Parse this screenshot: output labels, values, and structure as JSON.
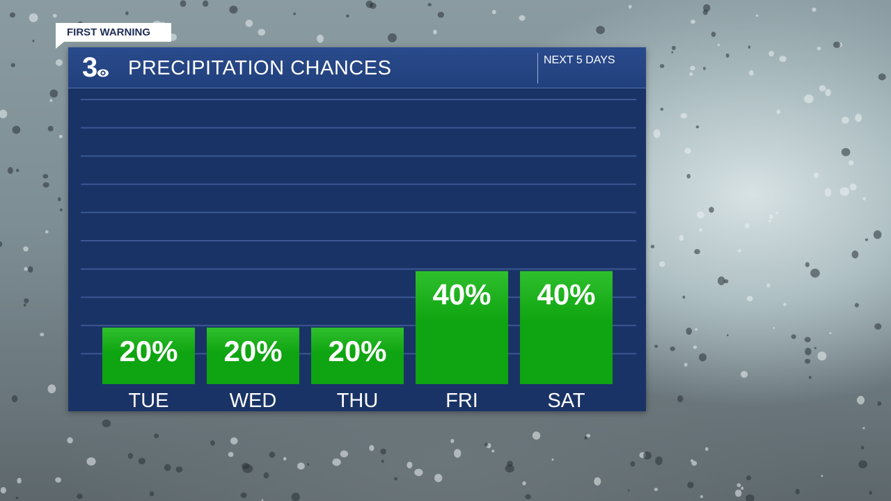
{
  "badge": {
    "label": "FIRST WARNING"
  },
  "header": {
    "title": "PRECIPITATION CHANCES",
    "period": "NEXT 5 DAYS",
    "logo_icon": "channel-3-cbs-eye-logo"
  },
  "colors": {
    "panel": "#1a3366",
    "header": "#2a4b8c",
    "bar": "#0fa411",
    "bar_light": "#2fbf2d",
    "gridline": "#3b5892",
    "text": "#ffffff"
  },
  "chart_data": {
    "type": "bar",
    "title": "PRECIPITATION CHANCES",
    "categories": [
      "TUE",
      "WED",
      "THU",
      "FRI",
      "SAT"
    ],
    "values": [
      20,
      20,
      20,
      40,
      40
    ],
    "value_labels": [
      "20%",
      "20%",
      "20%",
      "40%",
      "40%"
    ],
    "units": "%",
    "ylim": [
      0,
      100
    ],
    "grid": true,
    "legend": "none"
  }
}
